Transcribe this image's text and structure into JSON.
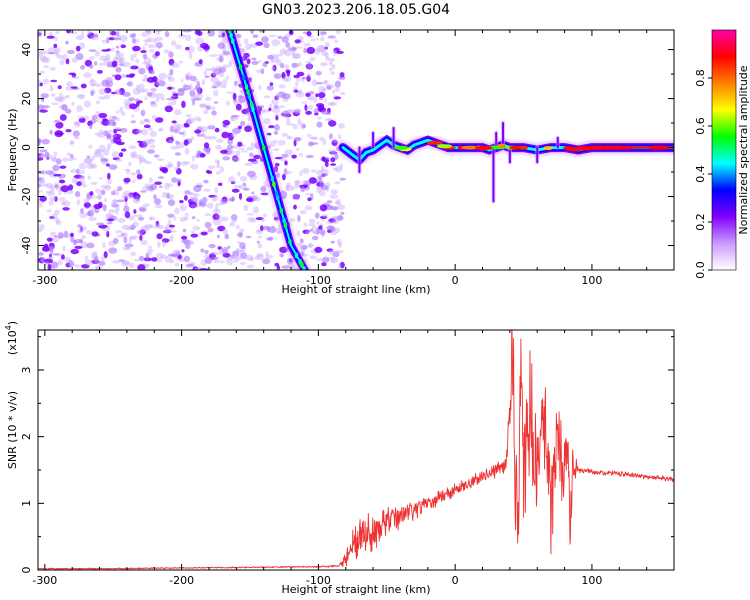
{
  "figure": {
    "title": "GN03.2023.206.18.05.G04"
  },
  "chart_data": [
    {
      "type": "heatmap",
      "id": "spectrogram",
      "xlabel": "Height of straight line (km)",
      "ylabel": "Frequency (Hz)",
      "xlim": [
        -305,
        160
      ],
      "ylim": [
        -50,
        48
      ],
      "xticks": [
        -300,
        -200,
        -100,
        0,
        100
      ],
      "yticks": [
        -40,
        -20,
        0,
        20,
        40
      ],
      "grid": false,
      "colorbar": {
        "label": "Normalized spectral amplitude",
        "range": [
          0,
          1
        ],
        "ticks": [
          "0.0",
          "0.2",
          "0.4",
          "0.6",
          "0.8"
        ],
        "colors": [
          "#ffffff",
          "#cc99ff",
          "#7f00ff",
          "#0000ff",
          "#00ffff",
          "#00ff00",
          "#ffff00",
          "#ff8000",
          "#ff0000",
          "#ff00aa"
        ]
      },
      "noise_region_x": [
        -305,
        -82
      ],
      "diagonal_track": {
        "x": [
          -165,
          -150,
          -135,
          -120,
          -110
        ],
        "y": [
          48,
          20,
          -10,
          -40,
          -50
        ]
      },
      "carrier_track": {
        "x": [
          -82,
          -75,
          -70,
          -65,
          -60,
          -55,
          -50,
          -45,
          -40,
          -35,
          -30,
          -25,
          -20,
          -15,
          -10,
          -5,
          0,
          10,
          20,
          25,
          30,
          35,
          40,
          50,
          60,
          70,
          80,
          90,
          100,
          110,
          120,
          130,
          140,
          150,
          160
        ],
        "y": [
          0,
          -3,
          -5,
          -2,
          -1,
          1,
          3,
          1,
          0,
          -1,
          1,
          2,
          3,
          2,
          1,
          0,
          0,
          0,
          0,
          -1,
          0,
          1,
          0,
          0,
          -1,
          0,
          0,
          -1,
          0,
          0,
          0,
          0,
          0,
          0,
          0
        ]
      }
    },
    {
      "type": "line",
      "id": "snr",
      "xlabel": "Height of straight line (km)",
      "ylabel": "SNR (10 * v/v)",
      "y_multiplier_label": "(x10",
      "y_multiplier_exp": "4",
      "y_multiplier_close": ")",
      "xlim": [
        -305,
        160
      ],
      "ylim": [
        0,
        3.6
      ],
      "xticks": [
        -300,
        -200,
        -100,
        0,
        100
      ],
      "yticks": [
        0,
        1,
        2,
        3
      ],
      "grid": false,
      "series": [
        {
          "color": "#ee3333",
          "x": [
            -305,
            -250,
            -200,
            -150,
            -100,
            -85,
            -80,
            -75,
            -70,
            -65,
            -60,
            -55,
            -50,
            -45,
            -40,
            -35,
            -30,
            -25,
            -20,
            -15,
            -10,
            -5,
            0,
            5,
            10,
            15,
            20,
            25,
            30,
            35,
            38,
            40,
            42,
            44,
            46,
            48,
            50,
            55,
            60,
            65,
            70,
            75,
            80,
            82,
            84,
            86,
            90,
            100,
            110,
            120,
            130,
            140,
            150,
            160
          ],
          "y": [
            0.02,
            0.02,
            0.03,
            0.04,
            0.05,
            0.06,
            0.15,
            0.4,
            0.5,
            0.6,
            0.55,
            0.65,
            0.7,
            0.75,
            0.8,
            0.85,
            0.9,
            0.95,
            1.0,
            1.05,
            1.1,
            1.15,
            1.2,
            1.25,
            1.3,
            1.35,
            1.4,
            1.45,
            1.5,
            1.6,
            1.7,
            2.5,
            3.5,
            1.2,
            0.3,
            2.9,
            1.4,
            2.5,
            1.2,
            2.2,
            1.0,
            2.0,
            1.3,
            2.1,
            0.5,
            1.6,
            1.5,
            1.48,
            1.45,
            1.45,
            1.42,
            1.4,
            1.38,
            1.36
          ],
          "noise_amplitude": [
            0.01,
            0.01,
            0.01,
            0.01,
            0.01,
            0.02,
            0.1,
            0.3,
            0.35,
            0.3,
            0.3,
            0.25,
            0.25,
            0.2,
            0.2,
            0.18,
            0.15,
            0.15,
            0.12,
            0.12,
            0.1,
            0.1,
            0.1,
            0.1,
            0.1,
            0.1,
            0.1,
            0.1,
            0.12,
            0.15,
            0.3,
            0.8,
            1.0,
            1.0,
            1.0,
            1.0,
            1.0,
            0.9,
            0.8,
            0.8,
            0.8,
            0.7,
            0.6,
            0.5,
            0.5,
            0.3,
            0.05,
            0.04,
            0.04,
            0.04,
            0.04,
            0.04,
            0.04,
            0.04
          ]
        }
      ]
    }
  ]
}
